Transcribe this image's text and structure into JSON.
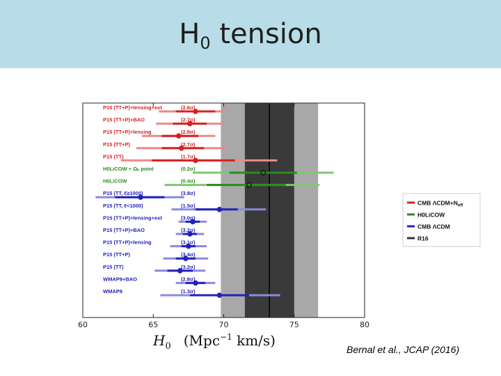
{
  "slide": {
    "title": "H",
    "title_sub": "0",
    "title_rest": " tension",
    "citation": "Bernal et al., JCAP (2016)"
  },
  "chart_data": {
    "type": "scatter",
    "subtype": "forest-plot",
    "xlabel_symbol": "H",
    "xlabel_sub": "0",
    "xlabel_units": "(Mpc",
    "xlabel_exp": "−1",
    "xlabel_units_rest": " km/s)",
    "xlim": [
      60,
      80
    ],
    "xticks": [
      60,
      65,
      70,
      75,
      80
    ],
    "grid": false,
    "legend_position": "right",
    "bands": [
      {
        "name": "R16",
        "center": 73.24,
        "inner": [
          71.5,
          75.0
        ],
        "outer": [
          69.8,
          76.7
        ],
        "inner_color": "#3a3a3a",
        "outer_color": "#a8a8a8"
      }
    ],
    "colors": {
      "red": "#d92020",
      "red_light": "#ee8888",
      "green": "#2a8c1a",
      "green_light": "#7ec86f",
      "blue": "#2222bb",
      "blue_light": "#8a8ae0",
      "tension_red": "#d92020",
      "tension_green": "#2a8c1a",
      "tension_blue": "#2222bb"
    },
    "rows": [
      {
        "label": "P15 (TT+P)+lensing+ext",
        "tension": "(2.6σ)",
        "group": "red",
        "value": 68.0,
        "err1": [
          66.6,
          69.4
        ],
        "err2": [
          65.4,
          70.2
        ],
        "filled": true
      },
      {
        "label": "P15 (TT+P)+BAO",
        "tension": "(2.7σ)",
        "group": "red",
        "value": 67.6,
        "err1": [
          66.4,
          68.8
        ],
        "err2": [
          65.2,
          70.0
        ],
        "filled": true
      },
      {
        "label": "P15 (TT+P)+lensing",
        "tension": "(2.8σ)",
        "group": "red",
        "value": 66.8,
        "err1": [
          65.6,
          68.2
        ],
        "err2": [
          64.2,
          69.4
        ],
        "filled": true
      },
      {
        "label": "P15 (TT+P)",
        "tension": "(2.7σ)",
        "group": "red",
        "value": 67.0,
        "err1": [
          65.6,
          68.6
        ],
        "err2": [
          63.8,
          70.2
        ],
        "filled": true
      },
      {
        "label": "P15 (TT)",
        "tension": "(1.7σ)",
        "group": "red",
        "value": 68.0,
        "err1": [
          64.9,
          70.8
        ],
        "err2": [
          62.7,
          73.8
        ],
        "filled": true
      },
      {
        "label": "H0LiCOW + Ωₖ point",
        "tension": "(0.2σ)",
        "group": "green",
        "value": 72.8,
        "err1": [
          70.4,
          75.2
        ],
        "err2": [
          67.8,
          77.8
        ],
        "filled": false
      },
      {
        "label": "H0LiCOW",
        "tension": "(0.4σ)",
        "group": "green",
        "value": 71.8,
        "err1": [
          68.8,
          74.4
        ],
        "err2": [
          65.8,
          76.8
        ],
        "filled": false
      },
      {
        "label": "P15 (TT, ℓ≥1000)",
        "tension": "(3.8σ)",
        "group": "blue",
        "value": 64.1,
        "err1": [
          62.3,
          65.8
        ],
        "err2": [
          60.9,
          67.2
        ],
        "filled": true
      },
      {
        "label": "P15 (TT, ℓ<1000)",
        "tension": "(1.5σ)",
        "group": "blue",
        "value": 69.7,
        "err1": [
          68.0,
          71.0
        ],
        "err2": [
          66.3,
          73.0
        ],
        "filled": true
      },
      {
        "label": "P15 (TT+P)+lensing+ext",
        "tension": "(3.0σ)",
        "group": "blue",
        "value": 67.8,
        "err1": [
          67.3,
          68.3
        ],
        "err2": [
          66.8,
          68.8
        ],
        "filled": true
      },
      {
        "label": "P15 (TT+P)+BAO",
        "tension": "(3.2σ)",
        "group": "blue",
        "value": 67.6,
        "err1": [
          67.1,
          68.1
        ],
        "err2": [
          66.6,
          68.6
        ],
        "filled": true
      },
      {
        "label": "P15 (TT+P)+lensing",
        "tension": "(3.1σ)",
        "group": "blue",
        "value": 67.5,
        "err1": [
          67.0,
          68.0
        ],
        "err2": [
          66.2,
          68.8
        ],
        "filled": true
      },
      {
        "label": "P15 (TT+P)",
        "tension": "(3.4σ)",
        "group": "blue",
        "value": 67.3,
        "err1": [
          66.6,
          68.0
        ],
        "err2": [
          65.7,
          68.9
        ],
        "filled": true
      },
      {
        "label": "P15 (TT)",
        "tension": "(3.2σ)",
        "group": "blue",
        "value": 66.9,
        "err1": [
          66.0,
          67.8
        ],
        "err2": [
          65.1,
          68.7
        ],
        "filled": true
      },
      {
        "label": "WMAP9+BAO",
        "tension": "(2.8σ)",
        "group": "blue",
        "value": 68.0,
        "err1": [
          67.3,
          68.7
        ],
        "err2": [
          66.6,
          69.4
        ],
        "filled": true
      },
      {
        "label": "WMAP9",
        "tension": "(1.3σ)",
        "group": "blue",
        "value": 69.7,
        "err1": [
          67.6,
          71.8
        ],
        "err2": [
          65.5,
          74.0
        ],
        "filled": true
      }
    ],
    "legend": [
      {
        "label": "CMB ΛCDM+N",
        "label_sub": "eff",
        "color": "#d92020"
      },
      {
        "label": "H0LiCOW",
        "color": "#2a8c1a"
      },
      {
        "label": "CMB ΛCDM",
        "color": "#2222bb"
      },
      {
        "label": "R16",
        "color": "#333333"
      }
    ]
  }
}
